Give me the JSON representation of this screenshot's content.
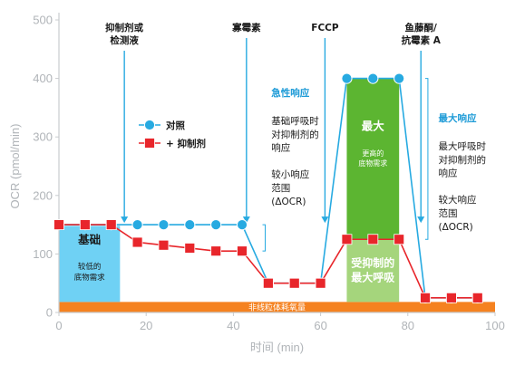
{
  "chart_data": {
    "type": "line",
    "xlabel": "时间 (min)",
    "ylabel": "OCR (pmol/min)",
    "xlim": [
      0,
      100
    ],
    "ylim": [
      0,
      500
    ],
    "xticks": [
      0,
      20,
      40,
      60,
      80,
      100
    ],
    "yticks": [
      0,
      100,
      200,
      300,
      400,
      500
    ],
    "grid": false,
    "legend_position": "upper-left inside plot",
    "series": [
      {
        "name": "对照",
        "marker": "circle",
        "color": "#27aae1",
        "x": [
          0,
          6,
          12,
          18,
          24,
          30,
          36,
          42,
          48,
          54,
          60,
          66,
          72,
          78,
          84,
          90,
          96
        ],
        "y": [
          150,
          150,
          150,
          150,
          150,
          150,
          150,
          150,
          50,
          50,
          50,
          400,
          400,
          400,
          25,
          25,
          25
        ]
      },
      {
        "name": "+ 抑制剂",
        "marker": "square",
        "color": "#e8262b",
        "x": [
          0,
          6,
          12,
          18,
          24,
          30,
          36,
          42,
          48,
          54,
          60,
          66,
          72,
          78,
          84,
          90,
          96
        ],
        "y": [
          150,
          150,
          150,
          120,
          115,
          110,
          105,
          105,
          50,
          50,
          50,
          125,
          125,
          125,
          25,
          25,
          25
        ]
      }
    ],
    "injections": [
      {
        "label": "抑制剂或\n检测液",
        "x": 15
      },
      {
        "label": "寡霉素",
        "x": 43
      },
      {
        "label": "FCCP",
        "x": 61
      },
      {
        "label": "鱼藤酮/\n抗霉素 A",
        "x": 83
      }
    ],
    "regions": {
      "non_mito": {
        "label": "非线粒体耗氧量",
        "y": [
          0,
          18
        ],
        "x": [
          0,
          100
        ]
      },
      "basal": {
        "label": "基础",
        "sublabel": "较低的\n底物需求",
        "x": [
          0,
          14
        ],
        "y": [
          18,
          148
        ]
      },
      "max": {
        "label": "最大",
        "sublabel": "更高的\n底物需求",
        "x": [
          66,
          78
        ],
        "y": [
          125,
          400
        ]
      },
      "inhibited_max": {
        "label": "受抑制的\n最大呼吸",
        "x": [
          66,
          78
        ],
        "y": [
          18,
          125
        ]
      }
    },
    "annotations": {
      "acute": {
        "heading": "急性响应",
        "lines": [
          "基础呼吸时",
          "对抑制剂的",
          "响应",
          "",
          "较小响应",
          "范围",
          " (ΔOCR)"
        ]
      },
      "maximal": {
        "heading": "最大响应",
        "lines": [
          "最大呼吸时",
          "对抑制剂的",
          "响应",
          "",
          "较大响应",
          "范围",
          "(ΔOCR)"
        ]
      }
    }
  }
}
